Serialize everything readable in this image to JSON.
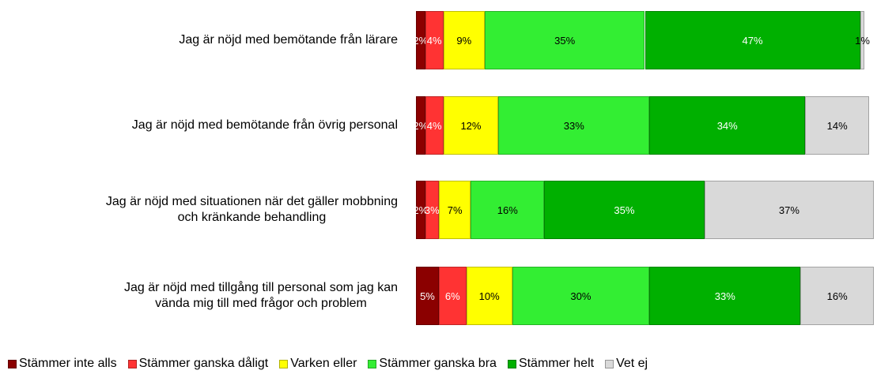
{
  "chart_data": {
    "type": "stacked-bar-horizontal",
    "categories": [
      "Jag är nöjd med bemötande från lärare",
      "Jag är nöjd med bemötande från övrig personal",
      "Jag är nöjd med situationen när det gäller mobbning\noch kränkande behandling",
      "Jag är nöjd med tillgång till personal som jag kan\nvända mig till med frågor och problem"
    ],
    "xlim": [
      0,
      100
    ],
    "legend": "bottom",
    "series": [
      {
        "name": "Stämmer inte alls",
        "color": "#8b0000",
        "values": [
          2,
          2,
          2,
          5
        ],
        "value_labels": [
          "2%",
          "2%",
          "2%",
          "5%"
        ]
      },
      {
        "name": "Stämmer ganska dåligt",
        "color": "#ff3333",
        "values": [
          4,
          4,
          3,
          6
        ],
        "value_labels": [
          "4%",
          "4%",
          "3%",
          "6%"
        ]
      },
      {
        "name": "Varken eller",
        "color": "#ffff00",
        "values": [
          9,
          12,
          7,
          10
        ],
        "value_labels": [
          "9%",
          "12%",
          "7%",
          "10%"
        ]
      },
      {
        "name": "Stämmer ganska bra",
        "color": "#33ee33",
        "values": [
          35,
          33,
          16,
          30
        ],
        "value_labels": [
          "35%",
          "33%",
          "16%",
          "30%"
        ]
      },
      {
        "name": "Stämmer helt",
        "color": "#00b000",
        "values": [
          47,
          34,
          35,
          33
        ],
        "value_labels": [
          "47%",
          "34%",
          "35%",
          "33%"
        ]
      },
      {
        "name": "Vet ej",
        "color": "#d9d9d9",
        "values": [
          1,
          14,
          37,
          16
        ],
        "value_labels": [
          "1%",
          "14%",
          "37%",
          "16%"
        ]
      }
    ]
  }
}
